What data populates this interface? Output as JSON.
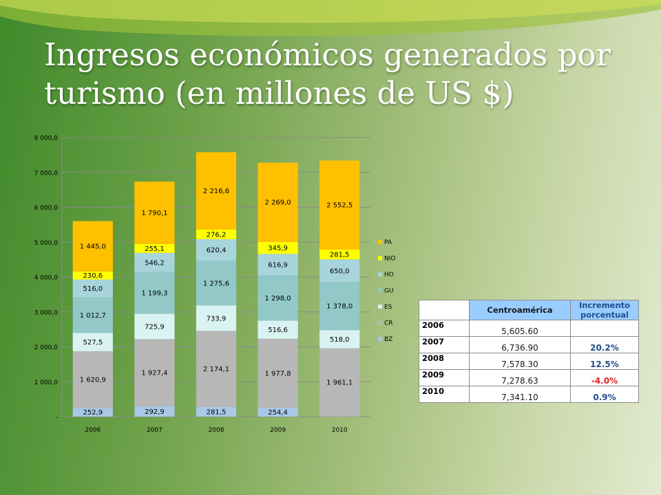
{
  "title": "Ingresos económicos generados por turismo (en millones  de US $)",
  "chart_data": {
    "type": "bar",
    "stacked": true,
    "categories": [
      "2006",
      "2007",
      "2008",
      "2009",
      "2010"
    ],
    "series": [
      {
        "name": "BZ",
        "color": "#a9c8e6",
        "values": [
          252.9,
          292.9,
          281.5,
          254.4,
          0
        ],
        "labels": [
          "252,9",
          "292,9",
          "281,5",
          "254,4",
          "-"
        ]
      },
      {
        "name": "CR",
        "color": "#b7b7b7",
        "values": [
          1620.9,
          1927.4,
          2174.1,
          1977.8,
          1961.1
        ],
        "labels": [
          "1 620,9",
          "1 927,4",
          "2 174,1",
          "1 977,8",
          "1 961,1"
        ]
      },
      {
        "name": "ES",
        "color": "#d9f2f2",
        "values": [
          527.5,
          725.9,
          733.9,
          516.6,
          518.0
        ],
        "labels": [
          "527,5",
          "725,9",
          "733,9",
          "516,6",
          "518,0"
        ]
      },
      {
        "name": "GU",
        "color": "#92c8c8",
        "values": [
          1012.7,
          1199.3,
          1275.6,
          1298.0,
          1378.0
        ],
        "labels": [
          "1 012,7",
          "1 199,3",
          "1 275,6",
          "1 298,0",
          "1 378,0"
        ]
      },
      {
        "name": "HO",
        "color": "#a8d4dc",
        "values": [
          516.0,
          546.2,
          620.4,
          616.9,
          650.0
        ],
        "labels": [
          "516,0",
          "546,2",
          "620,4",
          "616,9",
          "650,0"
        ]
      },
      {
        "name": "NIO",
        "color": "#ffff00",
        "values": [
          230.6,
          255.1,
          276.2,
          345.9,
          281.5
        ],
        "labels": [
          "230,6",
          "255,1",
          "276,2",
          "345,9",
          "281,5"
        ]
      },
      {
        "name": "PA",
        "color": "#ffc000",
        "values": [
          1445.0,
          1790.1,
          2216.6,
          2269.0,
          2552.5
        ],
        "labels": [
          "1 445,0",
          "1 790,1",
          "2 216,6",
          "2 269,0",
          "2 552,5"
        ]
      }
    ],
    "ylim": [
      0,
      8000
    ],
    "yticks": [
      {
        "value": 0,
        "label": "-"
      },
      {
        "value": 1000,
        "label": "1 000,0"
      },
      {
        "value": 2000,
        "label": "2 000,0"
      },
      {
        "value": 3000,
        "label": "3 000,0"
      },
      {
        "value": 4000,
        "label": "4 000,0"
      },
      {
        "value": 5000,
        "label": "5 000,0"
      },
      {
        "value": 6000,
        "label": "6 000,0"
      },
      {
        "value": 7000,
        "label": "7 000,0"
      },
      {
        "value": 8000,
        "label": "8 000,0"
      }
    ],
    "grid": true,
    "legend_position": "right"
  },
  "table": {
    "headers": [
      "",
      "Centroamérica",
      "Incremento porcentual"
    ],
    "rows": [
      {
        "year": "2006",
        "value": "5,605.60",
        "pct": "",
        "negative": false
      },
      {
        "year": "2007",
        "value": "6,736.90",
        "pct": "20.2%",
        "negative": false
      },
      {
        "year": "2008",
        "value": "7,578.30",
        "pct": "12.5%",
        "negative": false
      },
      {
        "year": "2009",
        "value": "7,278.63",
        "pct": "-4.0%",
        "negative": true
      },
      {
        "year": "2010",
        "value": "7,341.10",
        "pct": "0.9%",
        "negative": false
      }
    ]
  }
}
